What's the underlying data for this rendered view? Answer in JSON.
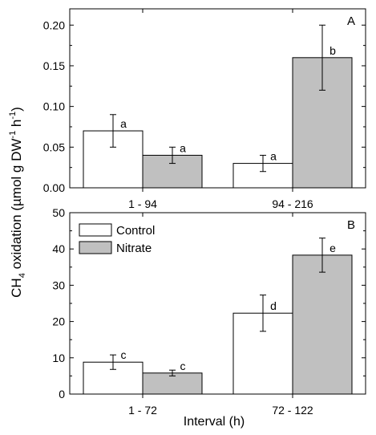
{
  "figure": {
    "ylabel_main": "CH",
    "ylabel_sub4": "4",
    "ylabel_mid": " oxidation (µmol g DW",
    "ylabel_sup1": "-1",
    "ylabel_h": " h",
    "ylabel_sup2": "-1",
    "ylabel_close": ")",
    "xlabel": "Interval (h)"
  },
  "colors": {
    "control": "#ffffff",
    "nitrate": "#c0c0c0",
    "stroke": "#000000"
  },
  "chart_data": [
    {
      "type": "bar",
      "panel_label": "A",
      "categories": [
        "1 - 94",
        "94 - 216"
      ],
      "ylim": [
        0,
        0.22
      ],
      "yticks": [
        0.0,
        0.05,
        0.1,
        0.15,
        0.2
      ],
      "ytick_labels": [
        "0.00",
        "0.05",
        "0.10",
        "0.15",
        "0.20"
      ],
      "series": [
        {
          "name": "Control",
          "values": [
            0.07,
            0.03
          ],
          "errors": [
            0.02,
            0.01
          ],
          "labels": [
            "a",
            "a"
          ]
        },
        {
          "name": "Nitrate",
          "values": [
            0.04,
            0.16
          ],
          "errors": [
            0.01,
            0.04
          ],
          "labels": [
            "a",
            "b"
          ]
        }
      ]
    },
    {
      "type": "bar",
      "panel_label": "B",
      "categories": [
        "1 - 72",
        "72 - 122"
      ],
      "ylim": [
        0,
        50
      ],
      "yticks": [
        0,
        10,
        20,
        30,
        40,
        50
      ],
      "ytick_labels": [
        "0",
        "10",
        "20",
        "30",
        "40",
        "50"
      ],
      "legend_position": "top-left",
      "series": [
        {
          "name": "Control",
          "values": [
            8.8,
            22.3
          ],
          "errors": [
            2.0,
            5.0
          ],
          "labels": [
            "c",
            "d"
          ]
        },
        {
          "name": "Nitrate",
          "values": [
            5.8,
            38.3
          ],
          "errors": [
            0.8,
            4.7
          ],
          "labels": [
            "c",
            "e"
          ]
        }
      ]
    }
  ]
}
